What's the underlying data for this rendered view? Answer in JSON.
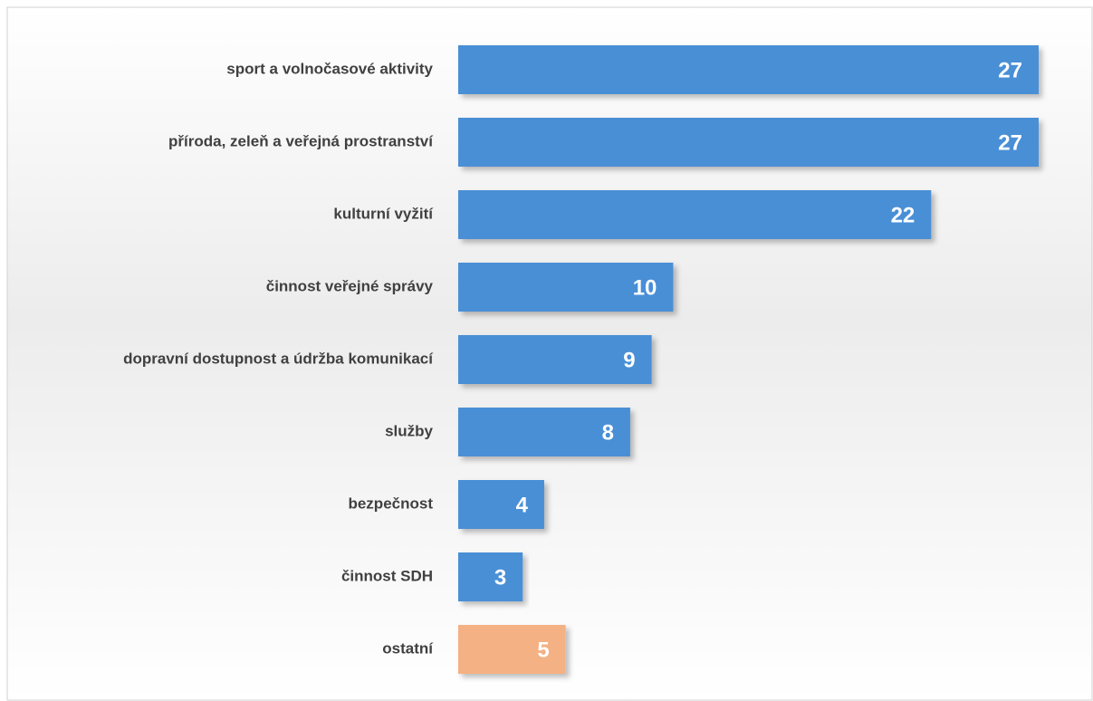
{
  "chart_data": {
    "type": "hbar",
    "categories": [
      "sport a volnočasové aktivity",
      "příroda, zeleň a veřejná prostranství",
      "kulturní vyžití",
      "činnost veřejné správy",
      "dopravní dostupnost a údržba komunikací",
      "služby",
      "bezpečnost",
      "činnost SDH",
      "ostatní"
    ],
    "values": [
      27,
      27,
      22,
      10,
      9,
      8,
      4,
      3,
      5
    ],
    "colors": [
      "#4a8fd6",
      "#4a8fd6",
      "#4a8fd6",
      "#4a8fd6",
      "#4a8fd6",
      "#4a8fd6",
      "#4a8fd6",
      "#4a8fd6",
      "#f4b183"
    ]
  }
}
